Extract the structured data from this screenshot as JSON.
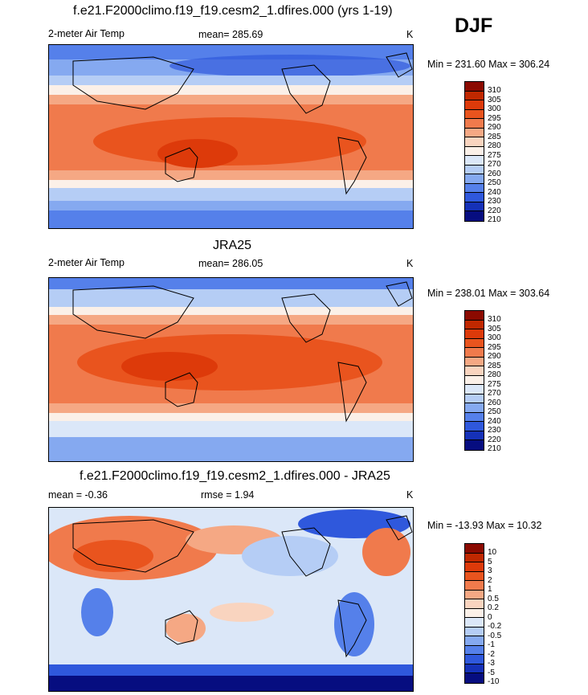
{
  "season": "DJF",
  "panels": [
    {
      "title": "f.e21.F2000climo.f19_f19.cesm2_1.dfires.000 (yrs 1-19)",
      "variable": "2-meter Air Temp",
      "stat": "mean= 285.69",
      "units": "K",
      "minmax": "Min = 231.60 Max = 306.24",
      "legend": [
        "310",
        "305",
        "300",
        "295",
        "290",
        "285",
        "280",
        "275",
        "270",
        "260",
        "250",
        "240",
        "230",
        "220",
        "210"
      ]
    },
    {
      "title": "JRA25",
      "variable": "2-meter Air Temp",
      "stat": "mean= 286.05",
      "units": "K",
      "minmax": "Min = 238.01 Max = 303.64",
      "legend": [
        "310",
        "305",
        "300",
        "295",
        "290",
        "285",
        "280",
        "275",
        "270",
        "260",
        "250",
        "240",
        "230",
        "220",
        "210"
      ]
    },
    {
      "title": "f.e21.F2000climo.f19_f19.cesm2_1.dfires.000 - JRA25",
      "variable": "mean =  -0.36",
      "stat": "rmse =   1.94",
      "units": "K",
      "minmax": "Min = -13.93 Max =  10.32",
      "legend": [
        "10",
        "5",
        "3",
        "2",
        "1",
        "0.5",
        "0.2",
        "0",
        "-0.2",
        "-0.5",
        "-1",
        "-2",
        "-3",
        "-5",
        "-10"
      ]
    }
  ],
  "palette": [
    "#8b0a00",
    "#c02800",
    "#dd3a0a",
    "#e9541e",
    "#f07a4c",
    "#f5a884",
    "#f9d4bf",
    "#fbf0e8",
    "#dbe7f8",
    "#b5cdf5",
    "#85a9f0",
    "#5580ea",
    "#2f58dc",
    "#1531b8",
    "#060d80"
  ]
}
